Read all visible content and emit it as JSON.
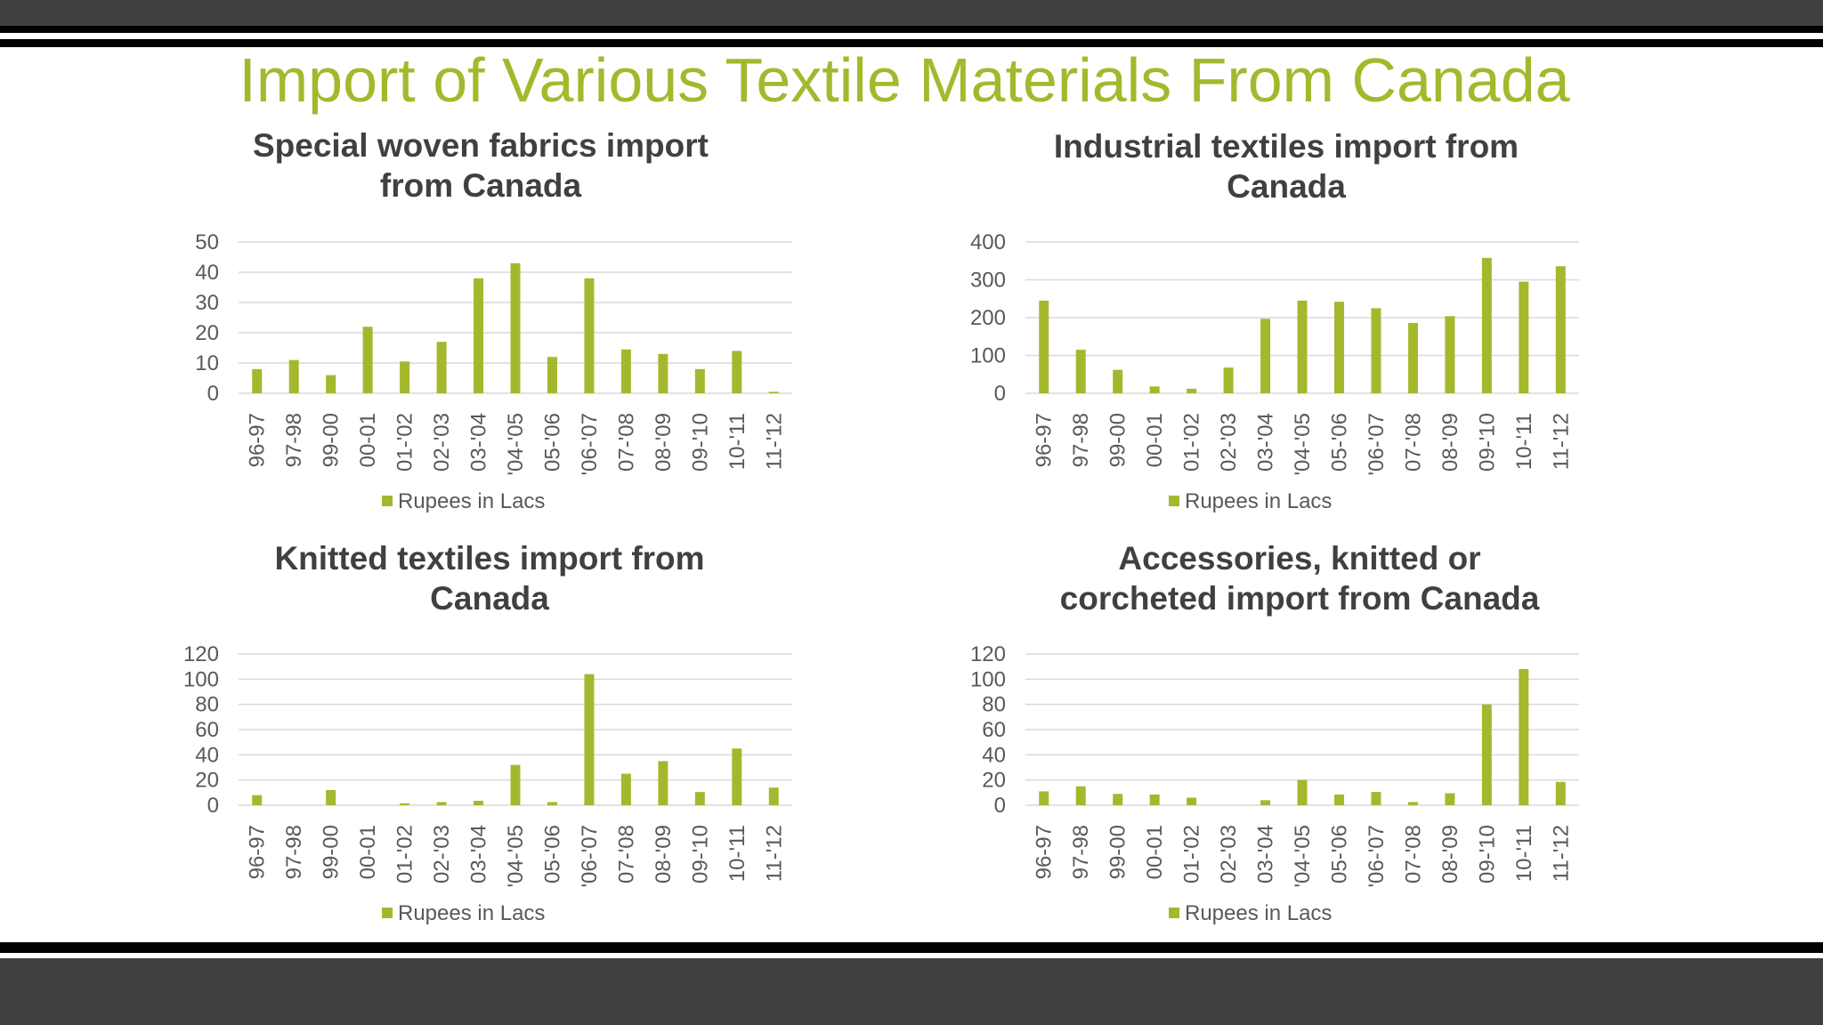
{
  "slide_title": "Import of Various Textile Materials From Canada",
  "colors": {
    "accent": "#A5B82D",
    "title": "#A5B82D",
    "band": "#404040",
    "axis_text": "#595959",
    "gridline": "#D9D9D9"
  },
  "chart_data": [
    {
      "type": "bar",
      "title_lines": [
        "Special woven fabrics import",
        "from Canada"
      ],
      "categories": [
        "96-97",
        "97-98",
        "99-00",
        "00-01",
        "01-'02",
        "02-'03",
        "03-'04",
        "'04-'05",
        "05-'06",
        "'06-'07",
        "07-'08",
        "08-'09",
        "09-'10",
        "10-'11",
        "11-'12"
      ],
      "series": [
        {
          "name": "Rupees in Lacs",
          "values": [
            8,
            11,
            6,
            22,
            10.5,
            17,
            38,
            43,
            12,
            38,
            14.5,
            13,
            8,
            14,
            0.5
          ]
        }
      ],
      "ylim": [
        0,
        50
      ],
      "yticks": [
        "0",
        "10",
        "20",
        "30",
        "40",
        "50"
      ],
      "grid": true,
      "legend": "bottom"
    },
    {
      "type": "bar",
      "title_lines": [
        "Industrial textiles import from",
        "Canada"
      ],
      "categories": [
        "96-97",
        "97-98",
        "99-00",
        "00-01",
        "01-'02",
        "02-'03",
        "03-'04",
        "'04-'05",
        "05-'06",
        "'06-'07",
        "07-'08",
        "08-'09",
        "09-'10",
        "10-'11",
        "11-'12"
      ],
      "series": [
        {
          "name": "Rupees in Lacs",
          "values": [
            245,
            115,
            62,
            18,
            12,
            68,
            197,
            245,
            242,
            225,
            186,
            204,
            358,
            295,
            336
          ]
        }
      ],
      "ylim": [
        0,
        400
      ],
      "yticks": [
        "0",
        "100",
        "200",
        "300",
        "400"
      ],
      "grid": true,
      "legend": "bottom"
    },
    {
      "type": "bar",
      "title_lines": [
        "Knitted textiles import from",
        "Canada"
      ],
      "categories": [
        "96-97",
        "97-98",
        "99-00",
        "00-01",
        "01-'02",
        "02-'03",
        "03-'04",
        "'04-'05",
        "05-'06",
        "'06-'07",
        "07-'08",
        "08-'09",
        "09-'10",
        "10-'11",
        "11-'12"
      ],
      "series": [
        {
          "name": "Rupees in Lacs",
          "values": [
            8,
            0,
            12,
            0,
            1.5,
            2.5,
            3.5,
            32,
            2.5,
            104,
            25,
            35,
            10.5,
            45,
            14
          ]
        }
      ],
      "ylim": [
        0,
        120
      ],
      "yticks": [
        "0",
        "20",
        "40",
        "60",
        "80",
        "100",
        "120"
      ],
      "grid": true,
      "legend": "bottom"
    },
    {
      "type": "bar",
      "title_lines": [
        "Accessories, knitted or",
        "corcheted import from Canada"
      ],
      "categories": [
        "96-97",
        "97-98",
        "99-00",
        "00-01",
        "01-'02",
        "02-'03",
        "03-'04",
        "'04-'05",
        "05-'06",
        "'06-'07",
        "07-'08",
        "08-'09",
        "09-'10",
        "10-'11",
        "11-'12"
      ],
      "series": [
        {
          "name": "Rupees in Lacs",
          "values": [
            11,
            15,
            9,
            8.5,
            6,
            0,
            4,
            20,
            8.5,
            10.5,
            2.5,
            9.5,
            80,
            108,
            18.5
          ]
        }
      ],
      "ylim": [
        0,
        120
      ],
      "yticks": [
        "0",
        "20",
        "40",
        "60",
        "80",
        "100",
        "120"
      ],
      "grid": true,
      "legend": "bottom"
    }
  ]
}
